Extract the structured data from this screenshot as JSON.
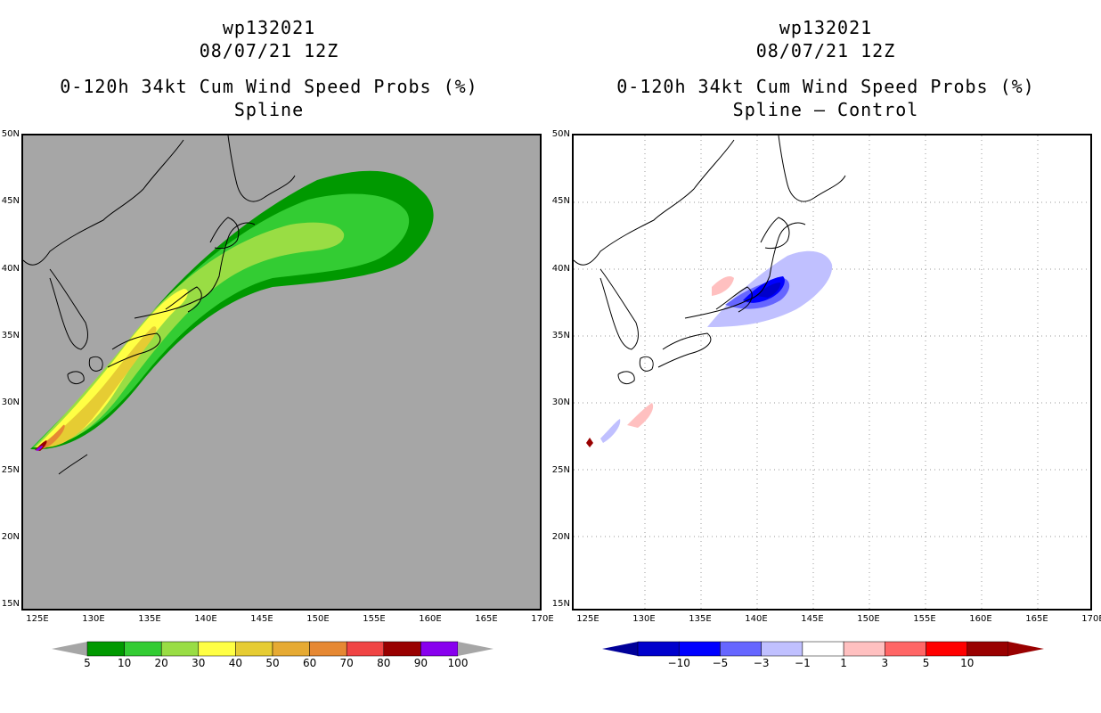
{
  "left": {
    "storm": "wp132021",
    "date": "08/07/21 12Z",
    "title": "0-120h 34kt Cum Wind Speed Probs (%)",
    "subtitle": "Spline"
  },
  "right": {
    "storm": "wp132021",
    "date": "08/07/21 12Z",
    "title": "0-120h 34kt Cum Wind Speed Probs (%)",
    "subtitle": "Spline — Control"
  },
  "axes": {
    "lat_labels": [
      "50N",
      "45N",
      "40N",
      "35N",
      "30N",
      "25N",
      "20N",
      "15N"
    ],
    "lon_labels": [
      "125E",
      "130E",
      "135E",
      "140E",
      "145E",
      "150E",
      "155E",
      "160E",
      "165E",
      "170E"
    ]
  },
  "chart_data": [
    {
      "type": "heatmap",
      "title": "0-120h 34kt Cum Wind Speed Probs (%) Spline",
      "xlim": [
        124,
        170
      ],
      "ylim": [
        14.5,
        50
      ],
      "background_color": "#a6a6a6",
      "colorbar": {
        "levels": [
          "5",
          "10",
          "20",
          "30",
          "40",
          "50",
          "60",
          "70",
          "80",
          "90",
          "100"
        ],
        "colors": [
          "#009900",
          "#33cc33",
          "#99dd44",
          "#ffff44",
          "#e6cc33",
          "#e6aa33",
          "#e68833",
          "#f04444",
          "#990000",
          "#8800ee"
        ],
        "end_color": "#a6a6a6"
      }
    },
    {
      "type": "heatmap",
      "title": "0-120h 34kt Cum Wind Speed Probs (%) Spline — Control",
      "xlim": [
        124,
        170
      ],
      "ylim": [
        14.5,
        50
      ],
      "colorbar": {
        "levels": [
          "−10",
          "−5",
          "−3",
          "−1",
          "1",
          "3",
          "5",
          "10"
        ],
        "colors": [
          "#0000cc",
          "#0000ff",
          "#6666ff",
          "#c0c0ff",
          "#ffffff",
          "#ffc0c0",
          "#ff6666",
          "#ff0000",
          "#990000"
        ],
        "low_end_color": "#000099",
        "high_end_color": "#990000"
      }
    }
  ]
}
